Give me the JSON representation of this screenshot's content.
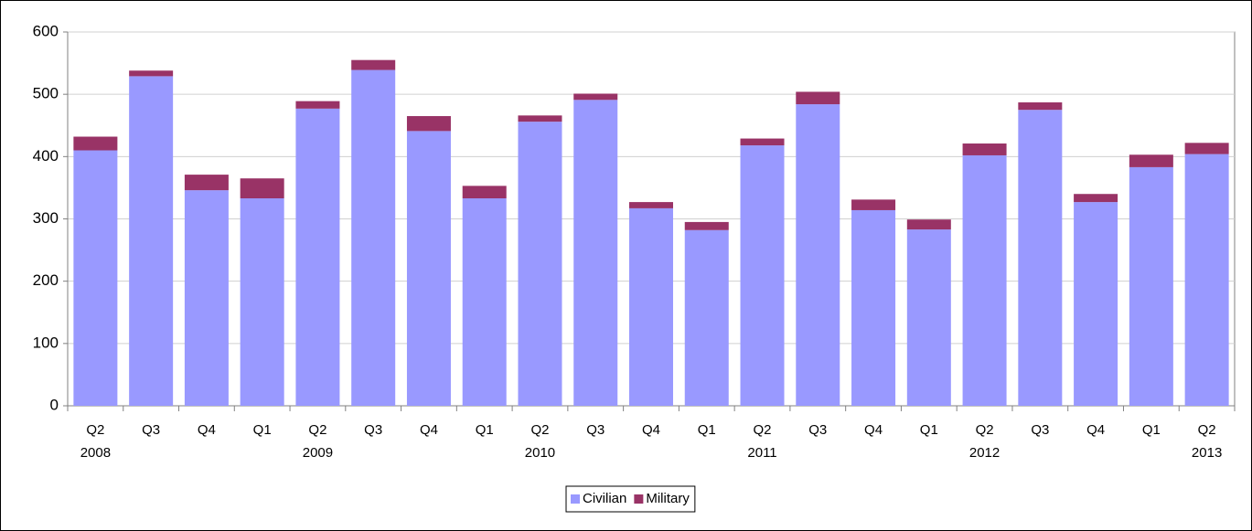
{
  "chart_data": {
    "type": "stacked_bar",
    "categories": [
      "Q2",
      "Q3",
      "Q4",
      "Q1",
      "Q2",
      "Q3",
      "Q4",
      "Q1",
      "Q2",
      "Q3",
      "Q4",
      "Q1",
      "Q2",
      "Q3",
      "Q4",
      "Q1",
      "Q2",
      "Q3",
      "Q4",
      "Q1",
      "Q2"
    ],
    "category_years": [
      "2008",
      null,
      null,
      null,
      "2009",
      null,
      null,
      null,
      "2010",
      null,
      null,
      null,
      "2011",
      null,
      null,
      null,
      "2012",
      null,
      null,
      null,
      "2013"
    ],
    "series": [
      {
        "name": "Civilian",
        "color": "#9999ff",
        "values": [
          410,
          529,
          346,
          333,
          477,
          539,
          441,
          333,
          456,
          491,
          317,
          282,
          418,
          484,
          314,
          283,
          402,
          475,
          327,
          383,
          404
        ]
      },
      {
        "name": "Military",
        "color": "#993366",
        "values": [
          22,
          9,
          25,
          32,
          12,
          16,
          24,
          20,
          10,
          10,
          10,
          13,
          11,
          20,
          17,
          16,
          19,
          12,
          13,
          20,
          18
        ]
      }
    ],
    "ylim": [
      0,
      600
    ],
    "yticks": [
      0,
      100,
      200,
      300,
      400,
      500,
      600
    ],
    "grid": true,
    "legend": "bottom"
  }
}
